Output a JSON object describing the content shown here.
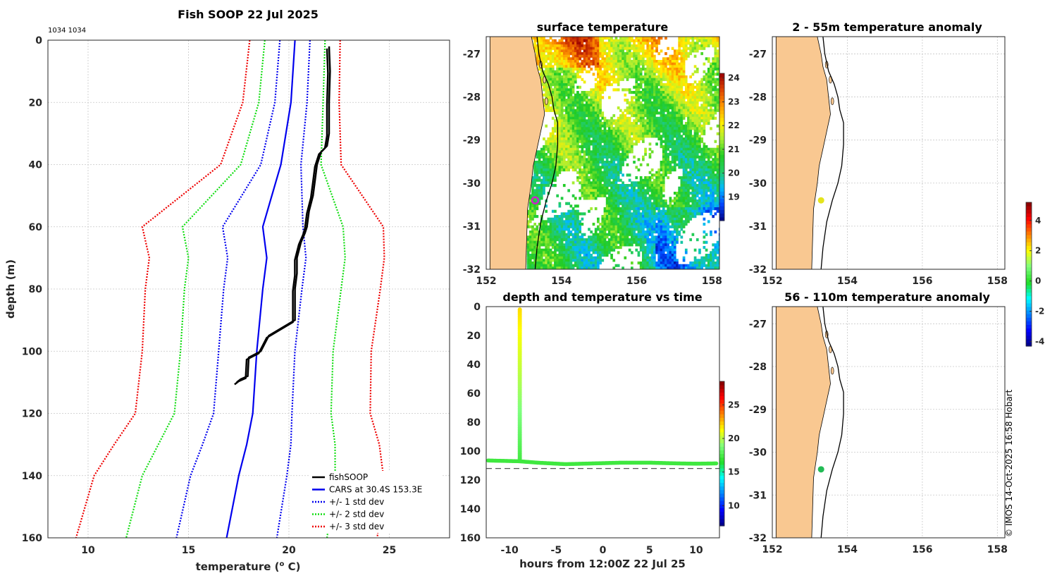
{
  "colors": {
    "land": "#f9c891",
    "fishsoop": "#000000",
    "cars": "#0000ee",
    "std1": "#0000ee",
    "std2": "#11dd11",
    "std3": "#ee0000",
    "marker_sst": "#cc22cc",
    "marker_anom1": "#e4e41c",
    "marker_anom2": "#22bb55",
    "timeline": "#22cc22"
  },
  "colormaps": {
    "jet": [
      "#00007f",
      "#0000ff",
      "#007fff",
      "#00ffff",
      "#22dd22",
      "#7fff7f",
      "#ffff00",
      "#ff7f00",
      "#ff0000",
      "#7f0000"
    ],
    "sst": [
      "#00007f",
      "#0044ff",
      "#00bbff",
      "#22cc66",
      "#22cc22",
      "#aaee33",
      "#ffee00",
      "#ff9900",
      "#dd4400",
      "#990000"
    ]
  },
  "chart_data": [
    {
      "id": "profile",
      "type": "line",
      "title": "Fish SOOP 22 Jul 2025",
      "annotation": "1034 1034",
      "xlabel": "temperature (°C)",
      "xlabel_base": "temperature (",
      "xlabel_sup": "o",
      "xlabel_end": " C)",
      "ylabel": "depth (m)",
      "xlim": [
        8,
        28
      ],
      "ylim": [
        160,
        0
      ],
      "xticks": [
        10,
        15,
        20,
        25
      ],
      "yticks": [
        0,
        20,
        40,
        60,
        80,
        100,
        120,
        140,
        160
      ],
      "depth": [
        0,
        20,
        40,
        60,
        70,
        80,
        100,
        120,
        130,
        140,
        160
      ],
      "cars_mean": [
        20.3,
        20.1,
        19.6,
        18.7,
        18.9,
        18.7,
        18.4,
        18.2,
        17.9,
        17.5,
        16.9
      ],
      "std1": [
        0.75,
        0.8,
        1.0,
        2.0,
        1.95,
        1.95,
        1.9,
        1.95,
        2.2,
        2.4,
        2.5
      ],
      "series": [
        {
          "name": "fishSOOP",
          "kind": "profile",
          "x": [
            22.0,
            22.05,
            22.0,
            22.0,
            21.95,
            21.9,
            21.6,
            21.4,
            21.3,
            21.2,
            21.0,
            20.9,
            20.8,
            20.6,
            20.4,
            20.4,
            20.3,
            20.3,
            19.0,
            18.6,
            18.0,
            17.95,
            17.6,
            17.4
          ],
          "y": [
            2,
            10,
            20,
            30,
            32,
            34,
            36,
            40,
            45,
            50,
            55,
            60,
            62,
            65,
            70,
            75,
            80,
            90,
            95,
            100,
            102,
            108,
            109,
            110
          ]
        },
        {
          "name": "CARS at 30.4S 153.3E",
          "kind": "mean"
        },
        {
          "name": "+/- 1 std dev",
          "kind": "std",
          "k": 1
        },
        {
          "name": "+/- 2 std dev",
          "kind": "std",
          "k": 2
        },
        {
          "name": "+/- 3 std dev",
          "kind": "std",
          "k": 3
        }
      ]
    },
    {
      "id": "sst",
      "type": "heatmap",
      "title": "surface temperature",
      "xlim": [
        152,
        158.2
      ],
      "ylim": [
        -32,
        -26.6
      ],
      "xticks": [
        152,
        154,
        156,
        158
      ],
      "yticks": [
        -27,
        -28,
        -29,
        -30,
        -31,
        -32
      ],
      "colorbar": {
        "range": [
          18,
          24.2
        ],
        "ticks": [
          19,
          20,
          21,
          22,
          23,
          24
        ]
      },
      "marker": {
        "lon": 153.3,
        "lat": -30.4
      }
    },
    {
      "id": "timeseries",
      "type": "scatter",
      "title": "depth and temperature vs time",
      "xlabel": "hours from 12:00Z 22 Jul 25",
      "xlim": [
        -12.5,
        12.5
      ],
      "ylim": [
        160,
        0
      ],
      "xticks": [
        -10,
        -5,
        0,
        5,
        10
      ],
      "yticks": [
        0,
        20,
        40,
        60,
        80,
        100,
        120,
        140,
        160
      ],
      "bottom_depth": 112,
      "colorbar": {
        "range": [
          7,
          28.5
        ],
        "ticks": [
          10,
          15,
          20,
          25
        ]
      },
      "descent_hour": -8.9,
      "descent": {
        "depth_top": 2,
        "depth_bottom": 106,
        "temp_top": 22,
        "temp_bottom": 17.5
      },
      "bottom_track": {
        "hours": [
          -12.3,
          -9,
          -7,
          -4,
          -1,
          2,
          5,
          8,
          10,
          12.2
        ],
        "depth": [
          106.5,
          107,
          108,
          109,
          108.5,
          108,
          108,
          108.5,
          108.7,
          108.5
        ],
        "temp": 17.3
      }
    },
    {
      "id": "anom1",
      "type": "scatter",
      "title": "2 - 55m temperature anomaly",
      "xlim": [
        152,
        158.2
      ],
      "ylim": [
        -32,
        -26.6
      ],
      "xticks": [
        152,
        154,
        156,
        158
      ],
      "yticks": [
        -27,
        -28,
        -29,
        -30,
        -31,
        -32
      ],
      "marker": {
        "lon": 153.3,
        "lat": -30.4,
        "value": 2.0
      }
    },
    {
      "id": "anom2",
      "type": "scatter",
      "title": "56 - 110m temperature anomaly",
      "xlim": [
        152,
        158.2
      ],
      "ylim": [
        -32,
        -26.6
      ],
      "xticks": [
        152,
        154,
        156,
        158
      ],
      "yticks": [
        -27,
        -28,
        -29,
        -30,
        -31,
        -32
      ],
      "marker": {
        "lon": 153.3,
        "lat": -30.4,
        "value": 0.5
      },
      "colorbar": {
        "range": [
          -4.3,
          5.2
        ],
        "ticks": [
          -4,
          -2,
          0,
          2,
          4
        ]
      }
    }
  ],
  "coastline": {
    "lon": [
      152.1,
      153.2,
      153.3,
      153.35,
      153.45,
      153.5,
      153.55,
      153.45,
      153.35,
      153.25,
      153.2,
      153.1,
      153.05,
      152.1
    ],
    "lat": [
      -26.6,
      -26.6,
      -27.0,
      -27.3,
      -27.6,
      -28.0,
      -28.4,
      -28.8,
      -29.2,
      -29.6,
      -30.0,
      -30.6,
      -32.0,
      -32.0
    ]
  },
  "isobath": {
    "lon": [
      153.35,
      153.4,
      153.5,
      153.65,
      153.75,
      153.8,
      153.9,
      153.9,
      153.85,
      153.75,
      153.6,
      153.45,
      153.35,
      153.3
    ],
    "lat": [
      -26.6,
      -27.0,
      -27.4,
      -27.7,
      -28.0,
      -28.3,
      -28.6,
      -29.1,
      -29.6,
      -30.0,
      -30.4,
      -30.9,
      -31.5,
      -32.0
    ]
  },
  "copyright": "© IMOS 14-Oct-2025 16:58 Hobart"
}
